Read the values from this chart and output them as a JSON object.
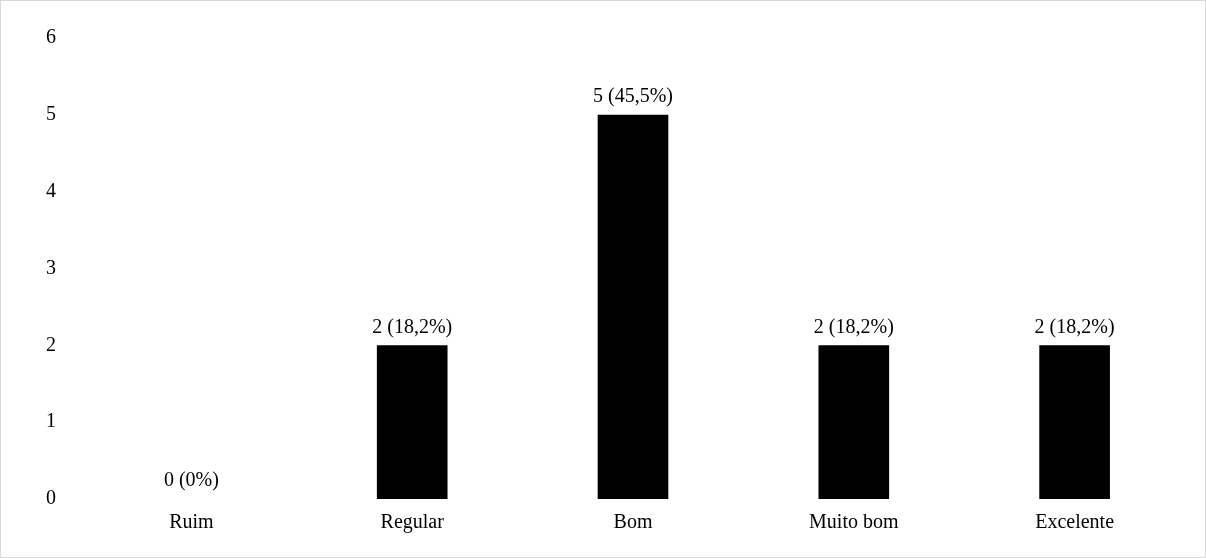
{
  "chart_data": {
    "type": "bar",
    "categories": [
      "Ruim",
      "Regular",
      "Bom",
      "Muito bom",
      "Excelente"
    ],
    "values": [
      0,
      2,
      5,
      2,
      2
    ],
    "color": "#000000",
    "value_labels": [
      "0 (0%)",
      "2 (18,2%)",
      "5 (45,5%)",
      "2 (18,2%)",
      "2 (18,2%)"
    ],
    "ylim": [
      0,
      6
    ],
    "yticks": [
      0,
      1,
      2,
      3,
      4,
      5,
      6
    ],
    "grid": false,
    "legend": false
  }
}
